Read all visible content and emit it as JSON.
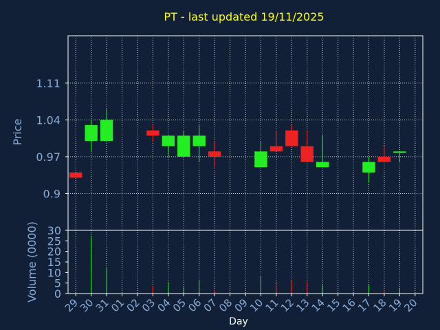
{
  "chart_data": {
    "type": "candlestick",
    "title": "PT - last updated 19/11/2025",
    "xlabel": "Day",
    "price_panel": {
      "ylabel": "Price",
      "yticks": [
        "0.9",
        "0.97",
        "1.04",
        "1.11"
      ],
      "yticks_values": [
        0.9,
        0.97,
        1.04,
        1.11
      ],
      "ylim": [
        0.83,
        1.2
      ],
      "grid": true
    },
    "volume_panel": {
      "ylabel": "Volume (0000)",
      "yticks": [
        "0",
        "5",
        "10",
        "15",
        "20",
        "25",
        "30"
      ],
      "yticks_values": [
        0,
        5,
        10,
        15,
        20,
        25,
        30
      ],
      "ylim": [
        0,
        30
      ]
    },
    "x_ticks": [
      "29",
      "30",
      "31",
      "01",
      "02",
      "03",
      "04",
      "05",
      "06",
      "07",
      "08",
      "09",
      "10",
      "11",
      "12",
      "13",
      "14",
      "15",
      "16",
      "17",
      "18",
      "19",
      "20"
    ],
    "candles": [
      {
        "day": "29",
        "open": 0.94,
        "high": 0.94,
        "low": 0.93,
        "close": 0.93,
        "volume": 0
      },
      {
        "day": "30",
        "open": 1.0,
        "high": 1.04,
        "low": 0.98,
        "close": 1.03,
        "volume": 27.5
      },
      {
        "day": "31",
        "open": 1.0,
        "high": 1.06,
        "low": 1.0,
        "close": 1.04,
        "volume": 12.5
      },
      {
        "day": "03",
        "open": 1.02,
        "high": 1.03,
        "low": 1.0,
        "close": 1.01,
        "volume": 3.5
      },
      {
        "day": "04",
        "open": 0.99,
        "high": 1.01,
        "low": 0.97,
        "close": 1.01,
        "volume": 5
      },
      {
        "day": "05",
        "open": 0.97,
        "high": 1.02,
        "low": 0.97,
        "close": 1.01,
        "volume": 3
      },
      {
        "day": "06",
        "open": 0.99,
        "high": 1.03,
        "low": 0.96,
        "close": 1.01,
        "volume": 6
      },
      {
        "day": "07",
        "open": 0.98,
        "high": 1.0,
        "low": 0.95,
        "close": 0.97,
        "volume": 1.5
      },
      {
        "day": "10",
        "open": 0.95,
        "high": 1.0,
        "low": 0.95,
        "close": 0.98,
        "volume": 8.5
      },
      {
        "day": "11",
        "open": 0.99,
        "high": 1.02,
        "low": 0.98,
        "close": 0.98,
        "volume": 5
      },
      {
        "day": "12",
        "open": 1.02,
        "high": 1.03,
        "low": 0.99,
        "close": 0.99,
        "volume": 6
      },
      {
        "day": "13",
        "open": 0.99,
        "high": 1.02,
        "low": 0.96,
        "close": 0.96,
        "volume": 5.5
      },
      {
        "day": "14",
        "open": 0.95,
        "high": 1.01,
        "low": 0.95,
        "close": 0.96,
        "volume": 4
      },
      {
        "day": "17",
        "open": 0.94,
        "high": 0.97,
        "low": 0.92,
        "close": 0.96,
        "volume": 4
      },
      {
        "day": "18",
        "open": 0.97,
        "high": 0.99,
        "low": 0.96,
        "close": 0.96,
        "volume": 1.5
      },
      {
        "day": "19",
        "open": 0.98,
        "high": 0.98,
        "low": 0.96,
        "close": 0.98,
        "volume": 2.5
      }
    ],
    "colors": {
      "up": "#22ee22",
      "down": "#ee2222",
      "background": "#112036",
      "axis": "#ffffff",
      "grid": "#ffffff",
      "title": "#ffff00",
      "label": "#8aaed8"
    }
  }
}
